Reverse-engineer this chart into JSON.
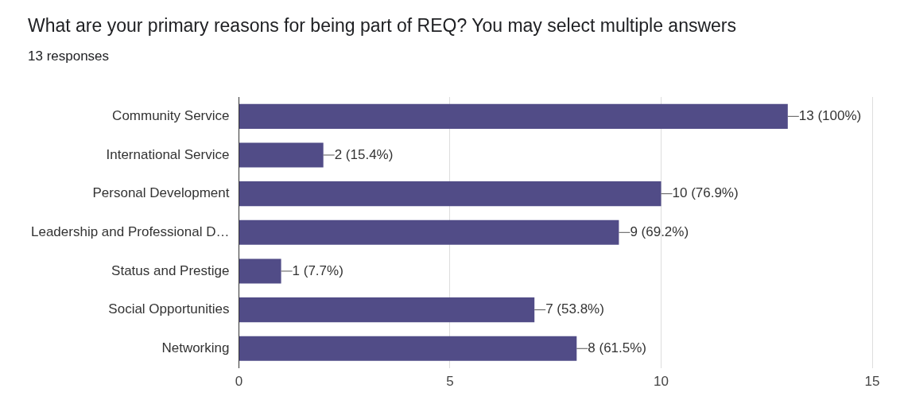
{
  "chart_data": {
    "type": "bar",
    "orientation": "horizontal",
    "title": "What are your primary reasons for being part of REQ? You may select multiple answers",
    "subtitle": "13 responses",
    "categories": [
      "Community Service",
      "International Service",
      "Personal Development",
      "Leadership and Professional D…",
      "Status and Prestige",
      "Social Opportunities",
      "Networking"
    ],
    "values": [
      13,
      2,
      10,
      9,
      1,
      7,
      8
    ],
    "value_labels": [
      "13 (100%)",
      "2 (15.4%)",
      "10 (76.9%)",
      "9 (69.2%)",
      "1 (7.7%)",
      "7 (53.8%)",
      "8 (61.5%)"
    ],
    "color": "#514c87",
    "xlim": [
      0,
      15
    ],
    "xticks": [
      0,
      5,
      10,
      15
    ],
    "grid": "x",
    "legend": false
  }
}
